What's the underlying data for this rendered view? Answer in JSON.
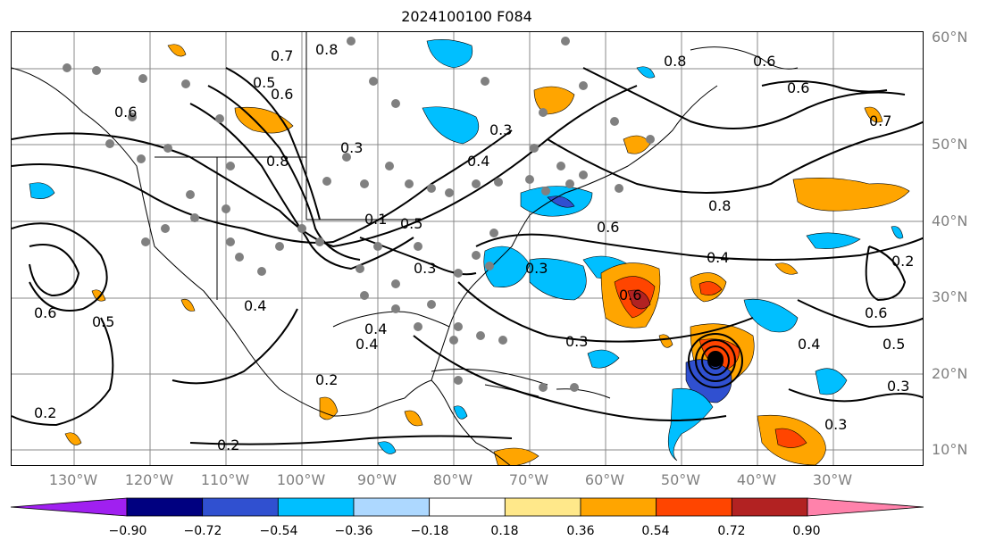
{
  "title": "2024100100 F084",
  "lat_labels": [
    "60°N",
    "50°N",
    "40°N",
    "30°N",
    "20°N",
    "10°N"
  ],
  "lon_labels": [
    "130°W",
    "120°W",
    "110°W",
    "100°W",
    "90°W",
    "80°W",
    "70°W",
    "60°W",
    "50°W",
    "40°W",
    "30°W"
  ],
  "contour_labels": [
    "0.7",
    "0.8",
    "0.5",
    "0.6",
    "0.8",
    "0.3",
    "0.6",
    "0.4",
    "0.3",
    "0.6",
    "0.7",
    "0.6",
    "0.8",
    "0.6",
    "0.8",
    "0.4",
    "0.5",
    "0.3",
    "0.4",
    "0.2",
    "0.6",
    "0.5",
    "0.4",
    "0.2",
    "0.3",
    "0.2",
    "0.3",
    "0.3",
    "0.6",
    "0.4",
    "0.5",
    "0.3",
    "0.6",
    "0.4",
    "0.2",
    "0.1"
  ],
  "colorbar": {
    "ticks": [
      "−0.90",
      "−0.72",
      "−0.54",
      "−0.36",
      "−0.18",
      "0.18",
      "0.36",
      "0.54",
      "0.72",
      "0.90"
    ],
    "colors": [
      "#a020f0",
      "#000080",
      "#3050d0",
      "#00bfff",
      "#add8ff",
      "#ffffff",
      "#ffe88a",
      "#ffa500",
      "#ff4500",
      "#b22222",
      "#ff82ab"
    ]
  },
  "fill_colors": {
    "light_blue": "#add8ff",
    "blue": "#00bfff",
    "mid_blue": "#3050d0",
    "navy": "#000080",
    "yellow": "#ffe88a",
    "orange": "#ffa500",
    "red_orange": "#ff4500",
    "dark_red": "#b22222"
  },
  "storm_marker": "black-dot"
}
